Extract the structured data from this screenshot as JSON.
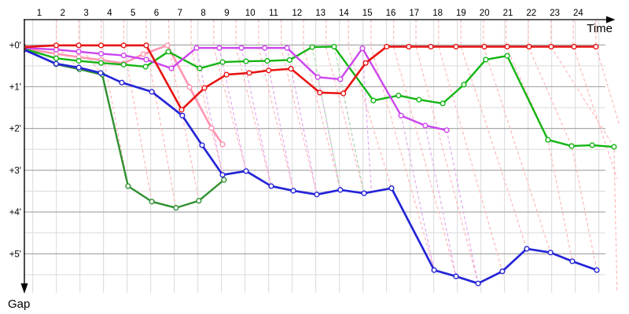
{
  "page": {
    "background": "#ffffff"
  },
  "chart_data": {
    "type": "line",
    "title": "",
    "xlabel": "Time",
    "ylabel": "Gap",
    "x_axis": {
      "ticks": [
        "1",
        "2",
        "3",
        "4",
        "5",
        "6",
        "7",
        "8",
        "9",
        "10",
        "11",
        "12",
        "13",
        "14",
        "15",
        "16",
        "17",
        "18",
        "19",
        "20",
        "21",
        "22",
        "23",
        "24"
      ],
      "range": [
        0,
        25.5
      ],
      "gridlines": 25
    },
    "y_axis": {
      "tick_labels": [
        "+0'",
        "+1'",
        "+2'",
        "+3'",
        "+4'",
        "+5'"
      ],
      "unit": "minutes of gap",
      "range": [
        -0.6,
        5.95
      ],
      "direction": "down"
    },
    "style": {
      "grid_vertical": "#d9d9d9",
      "grid_minute": "#9f9f9f",
      "grid_half_minute": "#dadada",
      "axis_color": "#000000",
      "marker_fill": "#ffffff"
    },
    "series": [
      {
        "name": "dark-green-rider",
        "color": "#2f8f2f",
        "width": 2.4,
        "points": [
          [
            0,
            0.09
          ],
          [
            1.4,
            0.46
          ],
          [
            2.4,
            0.58
          ],
          [
            3.38,
            0.71
          ],
          [
            4.49,
            3.38
          ],
          [
            5.51,
            3.75
          ],
          [
            6.55,
            3.9
          ],
          [
            7.53,
            3.73
          ],
          [
            8.61,
            3.23
          ]
        ]
      },
      {
        "name": "pink-rider",
        "color": "#ff95b0",
        "width": 2.6,
        "points": [
          [
            0,
            0.09
          ],
          [
            1.4,
            0.21
          ],
          [
            2.37,
            0.29
          ],
          [
            3.33,
            0.36
          ],
          [
            4.3,
            0.44
          ],
          [
            5.14,
            0.22
          ],
          [
            6.18,
            0.01
          ],
          [
            7.13,
            1.01
          ],
          [
            8.07,
            1.99
          ],
          [
            8.55,
            2.38
          ]
        ]
      },
      {
        "name": "green-rider",
        "color": "#13b513",
        "width": 2.4,
        "points": [
          [
            0,
            0.09
          ],
          [
            1.4,
            0.32
          ],
          [
            2.37,
            0.38
          ],
          [
            3.33,
            0.43
          ],
          [
            4.3,
            0.47
          ],
          [
            5.24,
            0.52
          ],
          [
            6.22,
            0.16
          ],
          [
            7.57,
            0.56
          ],
          [
            8.55,
            0.41
          ],
          [
            9.56,
            0.39
          ],
          [
            10.47,
            0.38
          ],
          [
            11.43,
            0.36
          ],
          [
            12.4,
            0.05
          ],
          [
            13.34,
            0.04
          ],
          [
            15.03,
            1.33
          ],
          [
            16.11,
            1.21
          ],
          [
            16.99,
            1.31
          ],
          [
            18.01,
            1.4
          ],
          [
            18.92,
            0.95
          ],
          [
            19.86,
            0.35
          ],
          [
            20.78,
            0.26
          ],
          [
            22.53,
            2.27
          ],
          [
            23.55,
            2.42
          ],
          [
            24.43,
            2.4
          ],
          [
            25.37,
            2.44
          ]
        ]
      },
      {
        "name": "magenta-rider",
        "color": "#cc44ee",
        "width": 2.4,
        "points": [
          [
            0,
            0.07
          ],
          [
            1.4,
            0.11
          ],
          [
            2.37,
            0.16
          ],
          [
            3.33,
            0.21
          ],
          [
            4.3,
            0.25
          ],
          [
            5.27,
            0.35
          ],
          [
            6.35,
            0.56
          ],
          [
            7.43,
            0.07
          ],
          [
            8.41,
            0.07
          ],
          [
            9.36,
            0.07
          ],
          [
            10.36,
            0.07
          ],
          [
            11.32,
            0.07
          ],
          [
            12.64,
            0.77
          ],
          [
            13.61,
            0.82
          ],
          [
            14.56,
            0.08
          ],
          [
            16.22,
            1.69
          ],
          [
            17.26,
            1.93
          ],
          [
            18.18,
            2.04
          ]
        ]
      },
      {
        "name": "blue-rider",
        "color": "#2424d6",
        "width": 2.7,
        "points": [
          [
            0,
            0.11
          ],
          [
            1.4,
            0.45
          ],
          [
            2.37,
            0.54
          ],
          [
            3.31,
            0.67
          ],
          [
            4.22,
            0.9
          ],
          [
            5.51,
            1.12
          ],
          [
            6.82,
            1.69
          ],
          [
            7.67,
            2.4
          ],
          [
            8.55,
            3.11
          ],
          [
            9.56,
            3.02
          ],
          [
            10.64,
            3.38
          ],
          [
            11.59,
            3.49
          ],
          [
            12.6,
            3.58
          ],
          [
            13.61,
            3.47
          ],
          [
            14.63,
            3.55
          ],
          [
            15.81,
            3.43
          ],
          [
            17.64,
            5.39
          ],
          [
            18.58,
            5.54
          ],
          [
            19.53,
            5.71
          ],
          [
            20.57,
            5.42
          ],
          [
            21.62,
            4.88
          ],
          [
            22.64,
            4.97
          ],
          [
            23.58,
            5.18
          ],
          [
            24.63,
            5.39
          ]
        ]
      },
      {
        "name": "red-rider",
        "color": "#e81313",
        "width": 2.6,
        "points": [
          [
            0,
            0.05
          ],
          [
            1.4,
            0.01
          ],
          [
            2.37,
            0.01
          ],
          [
            3.33,
            0.01
          ],
          [
            4.3,
            0.01
          ],
          [
            5.27,
            0.01
          ],
          [
            6.79,
            1.55
          ],
          [
            7.77,
            1.03
          ],
          [
            8.72,
            0.71
          ],
          [
            9.7,
            0.67
          ],
          [
            10.53,
            0.61
          ],
          [
            11.49,
            0.57
          ],
          [
            12.73,
            1.14
          ],
          [
            13.74,
            1.16
          ],
          [
            14.7,
            0.43
          ],
          [
            15.6,
            0.04
          ],
          [
            16.55,
            0.04
          ],
          [
            17.5,
            0.04
          ],
          [
            18.58,
            0.04
          ],
          [
            19.8,
            0.04
          ],
          [
            20.78,
            0.04
          ],
          [
            21.72,
            0.04
          ],
          [
            22.67,
            0.04
          ],
          [
            23.65,
            0.04
          ],
          [
            24.59,
            0.04
          ]
        ]
      }
    ],
    "checkpoint_lines": [
      {
        "name": "checkpoint-lines-red-leader",
        "color": "#ffb9b9",
        "lines": [
          [
            [
              1.41,
              -0.61
            ],
            [
              1.41,
              0.01
            ],
            [
              2.4,
              0.58
            ]
          ],
          [
            [
              2.37,
              -0.61
            ],
            [
              2.37,
              0.01
            ],
            [
              3.38,
              0.71
            ]
          ],
          [
            [
              3.34,
              -0.61
            ],
            [
              3.34,
              0.01
            ],
            [
              4.49,
              3.38
            ]
          ],
          [
            [
              4.3,
              -0.61
            ],
            [
              4.3,
              0.01
            ],
            [
              5.51,
              3.75
            ]
          ],
          [
            [
              5.27,
              -0.61
            ],
            [
              5.27,
              0.01
            ],
            [
              6.55,
              3.9
            ]
          ],
          [
            [
              6.24,
              -0.61
            ],
            [
              6.24,
              0.01
            ],
            [
              7.53,
              3.73
            ]
          ],
          [
            [
              7.2,
              -0.61
            ],
            [
              7.2,
              0.07
            ],
            [
              8.61,
              3.23
            ]
          ],
          [
            [
              8.17,
              -0.61
            ],
            [
              8.17,
              0.07
            ],
            [
              9.56,
              3.02
            ]
          ],
          [
            [
              9.13,
              -0.61
            ],
            [
              9.13,
              0.07
            ],
            [
              10.64,
              3.38
            ]
          ],
          [
            [
              10.1,
              -0.61
            ],
            [
              10.1,
              0.07
            ],
            [
              11.59,
              3.49
            ]
          ],
          [
            [
              11.07,
              -0.61
            ],
            [
              11.07,
              0.07
            ],
            [
              12.6,
              3.58
            ]
          ],
          [
            [
              12.03,
              -0.61
            ],
            [
              12.03,
              0.07
            ],
            [
              13.61,
              3.47
            ]
          ],
          [
            [
              13.0,
              -0.61
            ],
            [
              13.0,
              0.07
            ],
            [
              14.63,
              3.55
            ]
          ],
          [
            [
              13.96,
              -0.61
            ],
            [
              13.96,
              0.07
            ],
            [
              15.81,
              3.43
            ]
          ],
          [
            [
              14.93,
              -0.61
            ],
            [
              14.93,
              0.05
            ],
            [
              17.64,
              5.39
            ]
          ],
          [
            [
              15.9,
              -0.61
            ],
            [
              15.9,
              0.04
            ],
            [
              18.58,
              5.54
            ]
          ],
          [
            [
              16.86,
              -0.61
            ],
            [
              16.86,
              0.04
            ],
            [
              19.53,
              5.71
            ]
          ],
          [
            [
              17.83,
              -0.61
            ],
            [
              17.83,
              0.04
            ],
            [
              20.57,
              5.42
            ]
          ],
          [
            [
              18.79,
              -0.61
            ],
            [
              18.79,
              0.04
            ],
            [
              21.62,
              4.88
            ]
          ],
          [
            [
              19.76,
              -0.61
            ],
            [
              19.76,
              0.04
            ],
            [
              22.64,
              4.97
            ]
          ],
          [
            [
              20.73,
              -0.61
            ],
            [
              20.73,
              0.04
            ],
            [
              22.53,
              2.27
            ],
            [
              23.58,
              5.18
            ]
          ],
          [
            [
              21.69,
              -0.61
            ],
            [
              21.69,
              0.04
            ],
            [
              23.55,
              2.42
            ],
            [
              24.63,
              5.39
            ]
          ],
          [
            [
              22.66,
              -0.61
            ],
            [
              22.66,
              0.04
            ],
            [
              25.37,
              2.44
            ],
            [
              25.5,
              5.92
            ]
          ],
          [
            [
              23.62,
              -0.61
            ],
            [
              23.62,
              0.04
            ],
            [
              25.5,
              3.2
            ]
          ],
          [
            [
              24.59,
              -0.61
            ],
            [
              24.59,
              0.04
            ],
            [
              25.6,
              1.9
            ]
          ]
        ]
      },
      {
        "name": "checkpoint-lines-magenta-leader",
        "color": "#e2aaf0",
        "lines": [
          [
            [
              7.43,
              0.07
            ],
            [
              8.55,
              3.11
            ]
          ],
          [
            [
              8.41,
              0.07
            ],
            [
              9.56,
              3.02
            ]
          ],
          [
            [
              9.36,
              0.07
            ],
            [
              10.64,
              3.38
            ]
          ],
          [
            [
              10.36,
              0.07
            ],
            [
              11.59,
              3.49
            ]
          ],
          [
            [
              11.32,
              0.07
            ],
            [
              12.6,
              3.58
            ]
          ],
          [
            [
              12.64,
              0.77
            ],
            [
              13.61,
              3.47
            ]
          ],
          [
            [
              13.61,
              0.82
            ],
            [
              14.63,
              3.55
            ]
          ],
          [
            [
              14.56,
              0.08
            ],
            [
              14.95,
              3.55
            ]
          ],
          [
            [
              16.22,
              1.69
            ],
            [
              17.64,
              5.39
            ]
          ],
          [
            [
              17.26,
              1.93
            ],
            [
              18.58,
              5.54
            ]
          ],
          [
            [
              18.18,
              2.04
            ],
            [
              19.53,
              5.71
            ]
          ]
        ]
      },
      {
        "name": "checkpoint-lines-green-leader",
        "color": "#aee3ae",
        "lines": [
          [
            [
              12.4,
              0.05
            ],
            [
              13.61,
              3.47
            ]
          ],
          [
            [
              13.34,
              0.04
            ],
            [
              14.63,
              3.55
            ]
          ]
        ]
      }
    ]
  }
}
